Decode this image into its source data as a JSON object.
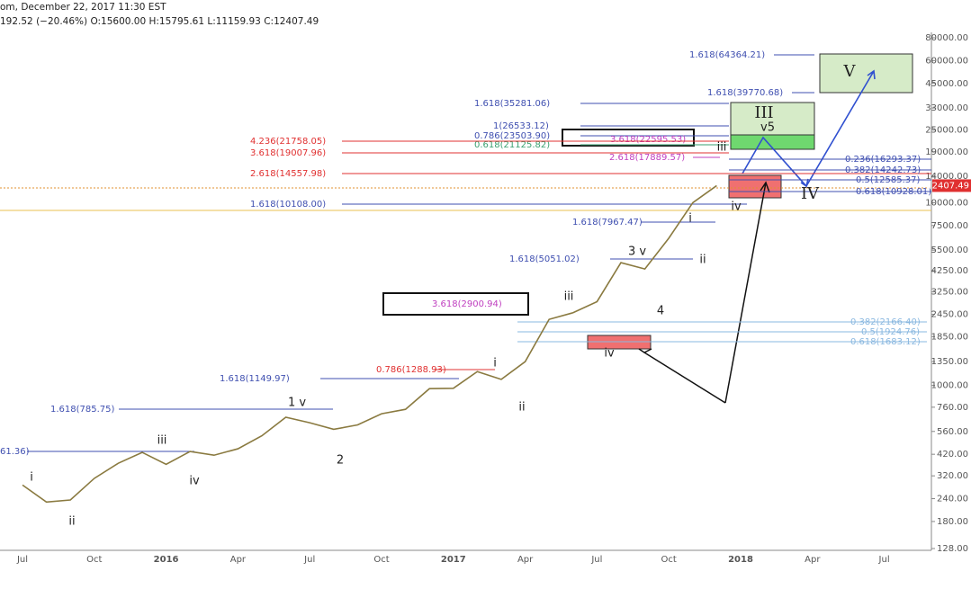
{
  "header": {
    "line1": "om, December 22, 2017 11:30 EST",
    "line2": "192.52 (−20.46%) O:15600.00 H:15795.61 L:11159.93 C:12407.49"
  },
  "chart_data": {
    "type": "line",
    "log_scale": true,
    "color": "#8a7a40",
    "categories": [
      "Jul",
      null,
      null,
      "Oct",
      null,
      null,
      "2016",
      null,
      null,
      "Apr",
      null,
      null,
      "Jul",
      null,
      null,
      "Oct",
      null,
      null,
      "2017",
      null,
      null,
      "Apr",
      null,
      null,
      "Jul",
      null,
      null,
      "Oct",
      null,
      null,
      "2018",
      null,
      null,
      "Apr",
      null,
      null,
      "Jul"
    ],
    "values": [
      285,
      230,
      236,
      310,
      375,
      430,
      370,
      435,
      415,
      450,
      530,
      670,
      625,
      575,
      608,
      700,
      740,
      960,
      965,
      1190,
      1080,
      1350,
      2300,
      2500,
      2875,
      4700,
      4340,
      6400,
      10000,
      12407.49,
      null,
      null,
      null,
      null,
      null,
      null,
      null
    ],
    "ylim": [
      128,
      80000
    ],
    "yticks": [
      {
        "value": 80000,
        "label": "80000.00"
      },
      {
        "value": 60000,
        "label": "60000.00"
      },
      {
        "value": 45000,
        "label": "45000.00"
      },
      {
        "value": 33000,
        "label": "33000.00"
      },
      {
        "value": 25000,
        "label": "25000.00"
      },
      {
        "value": 19000,
        "label": "19000.00"
      },
      {
        "value": 14000,
        "label": "14000.00"
      },
      {
        "value": 10000,
        "label": "10000.00"
      },
      {
        "value": 7500,
        "label": "7500.00"
      },
      {
        "value": 5500,
        "label": "5500.00"
      },
      {
        "value": 4250,
        "label": "4250.00"
      },
      {
        "value": 3250,
        "label": "3250.00"
      },
      {
        "value": 2450,
        "label": "2450.00"
      },
      {
        "value": 1850,
        "label": "1850.00"
      },
      {
        "value": 1350,
        "label": "1350.00"
      },
      {
        "value": 1000,
        "label": "1000.00"
      },
      {
        "value": 760,
        "label": "760.00"
      },
      {
        "value": 560,
        "label": "560.00"
      },
      {
        "value": 420,
        "label": "420.00"
      },
      {
        "value": 320,
        "label": "320.00"
      },
      {
        "value": 240,
        "label": "240.00"
      },
      {
        "value": 180,
        "label": "180.00"
      },
      {
        "value": 128,
        "label": "128.00"
      }
    ],
    "annotations": [
      {
        "text": "1.618(64364.21)",
        "color": "#3f4fb0"
      },
      {
        "text": "1.618(39770.68)",
        "color": "#3f4fb0"
      },
      {
        "text": "1.618(35281.06)",
        "color": "#3f4fb0"
      },
      {
        "text": "1(26533.12)",
        "color": "#3f4fb0"
      },
      {
        "text": "0.786(23503.90)",
        "color": "#3f4fb0"
      },
      {
        "text": "0.618(21125.82)",
        "color": "#3aa070"
      },
      {
        "text": "3.618(22595.53)",
        "color": "#c040c0"
      },
      {
        "text": "4.236(21758.05)",
        "color": "#e03030"
      },
      {
        "text": "3.618(19007.96)",
        "color": "#e03030"
      },
      {
        "text": "2.618(17889.57)",
        "color": "#c040c0"
      },
      {
        "text": "2.618(14557.98)",
        "color": "#e03030"
      },
      {
        "text": "0.236(16293.37)",
        "color": "#3f4fb0"
      },
      {
        "text": "0.382(14242.73)",
        "color": "#3f4fb0"
      },
      {
        "text": "0.5(12585.37)",
        "color": "#3f4fb0"
      },
      {
        "text": "0.618(10928.01)",
        "color": "#3f4fb0"
      },
      {
        "text": "1.618(10108.00)",
        "color": "#3f4fb0"
      },
      {
        "text": "1.618(7967.47)",
        "color": "#3f4fb0"
      },
      {
        "text": "1.618(5051.02)",
        "color": "#3f4fb0"
      },
      {
        "text": "3.618(2900.94)",
        "color": "#c040c0"
      },
      {
        "text": "0.382(2166.40)",
        "color": "#8ab8e0"
      },
      {
        "text": "0.5(1924.76)",
        "color": "#8ab8e0"
      },
      {
        "text": "0.618(1683.12)",
        "color": "#8ab8e0"
      },
      {
        "text": "0.786(1288.93)",
        "color": "#e03030"
      },
      {
        "text": "1.618(1149.97)",
        "color": "#3f4fb0"
      },
      {
        "text": "1.618(785.75)",
        "color": "#3f4fb0"
      },
      {
        "text": "61.36)",
        "color": "#3f4fb0"
      }
    ],
    "wave_labels": [
      "i",
      "ii",
      "iii",
      "iv",
      "1 v",
      "2",
      "i",
      "ii",
      "iii",
      "iv",
      "3 v",
      "4",
      "i",
      "ii",
      "iii",
      "iv",
      "III",
      "v5",
      "IV",
      "V"
    ]
  }
}
